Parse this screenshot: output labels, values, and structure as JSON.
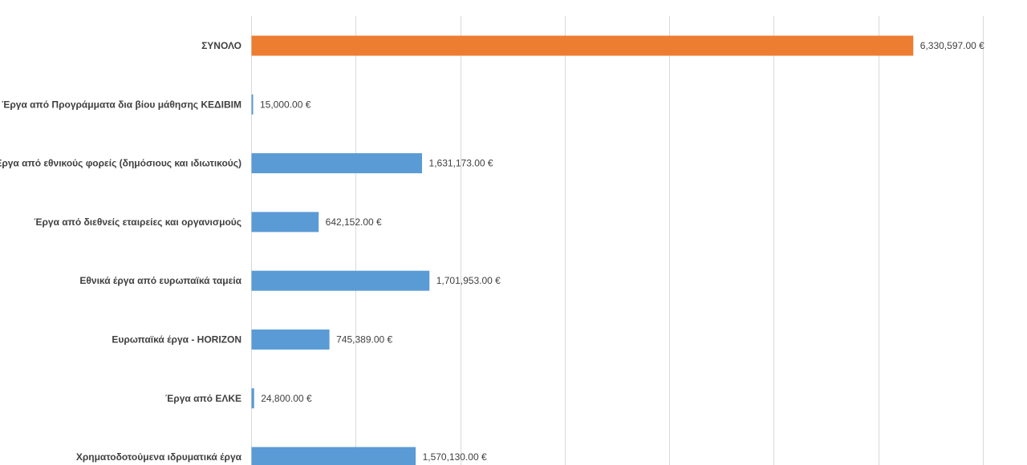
{
  "chart_data": {
    "type": "bar",
    "orientation": "horizontal",
    "title": "",
    "xlabel": "",
    "ylabel": "",
    "grid": true,
    "xlim": [
      0,
      7000000
    ],
    "x_major_unit": 1000000,
    "currency_suffix": " €",
    "categories": [
      "ΣΥΝΟΛΟ",
      "Έργα από Προγράμματα δια βίου μάθησης ΚΕΔΙΒΙΜ",
      "Έργα από εθνικούς φορείς (δημόσιους και ιδιωτικούς)",
      "Έργα από διεθνείς εταιρείες και οργανισμούς",
      "Εθνικά έργα από ευρωπαϊκά ταμεία",
      "Ευρωπαϊκά έργα - HORIZON",
      "Έργα από ΕΛΚΕ",
      "Χρηματοδοτούμενα ιδρυματικά έργα"
    ],
    "values": [
      6330597,
      15000,
      1631173,
      642152,
      1701953,
      745389,
      24800,
      1570130
    ],
    "value_labels": [
      "6,330,597.00 €",
      "15,000.00 €",
      "1,631,173.00 €",
      "642,152.00 €",
      "1,701,953.00 €",
      "745,389.00 €",
      "24,800.00 €",
      "1,570,130.00 €"
    ],
    "colors": [
      "#ed7d31",
      "#5b9bd5",
      "#5b9bd5",
      "#5b9bd5",
      "#5b9bd5",
      "#5b9bd5",
      "#5b9bd5",
      "#5b9bd5"
    ],
    "gridline_color": "#d9d9d9",
    "label_color": "#404040"
  }
}
